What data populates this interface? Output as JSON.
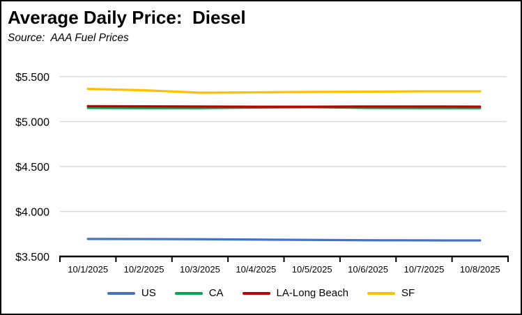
{
  "header": {
    "title": "Average Daily Price:  Diesel",
    "source": "Source:  AAA Fuel Prices"
  },
  "colors": {
    "gridline": "#D9D9D9",
    "axis": "#000000",
    "text": "#000000",
    "border": "#000000",
    "background": "#FFFFFF"
  },
  "chart_data": {
    "type": "line",
    "title": "Average Daily Price:  Diesel",
    "subtitle": "Source:  AAA Fuel Prices",
    "x": [
      "10/1/2025",
      "10/2/2025",
      "10/3/2025",
      "10/4/2025",
      "10/5/2025",
      "10/6/2025",
      "10/7/2025",
      "10/8/2025"
    ],
    "series": [
      {
        "name": "US",
        "color": "#4472C4",
        "values": [
          3.695,
          3.694,
          3.692,
          3.688,
          3.684,
          3.68,
          3.679,
          3.678
        ]
      },
      {
        "name": "CA",
        "color": "#00A650",
        "values": [
          5.152,
          5.15,
          5.15,
          5.156,
          5.16,
          5.152,
          5.15,
          5.15
        ]
      },
      {
        "name": "LA-Long Beach",
        "color": "#C00000",
        "values": [
          5.172,
          5.17,
          5.168,
          5.166,
          5.166,
          5.168,
          5.168,
          5.167
        ]
      },
      {
        "name": "SF",
        "color": "#FFC000",
        "values": [
          5.364,
          5.349,
          5.322,
          5.326,
          5.33,
          5.333,
          5.337,
          5.337
        ]
      }
    ],
    "xlabel": "",
    "ylabel": "",
    "ylim": [
      3.5,
      5.5
    ],
    "y_tick_step": 0.5,
    "y_tick_labels": [
      "$5.500",
      "$5.000",
      "$4.500",
      "$4.000",
      "$3.500"
    ],
    "y_tick_prefix": "$",
    "y_tick_decimals": 3,
    "grid": true,
    "legend_position": "bottom"
  }
}
